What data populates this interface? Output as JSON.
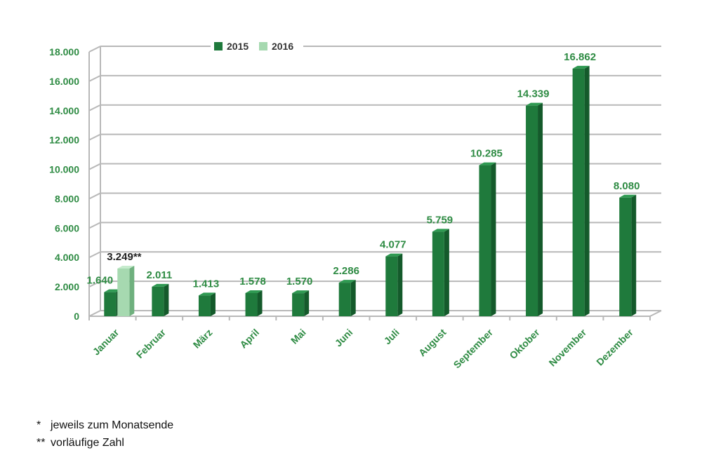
{
  "chart_data": {
    "type": "bar",
    "title": "",
    "xlabel": "",
    "ylabel": "",
    "ylim": [
      0,
      18000
    ],
    "yticks": [
      0,
      2000,
      4000,
      6000,
      8000,
      10000,
      12000,
      14000,
      16000,
      18000
    ],
    "ytick_labels": [
      "0",
      "2.000",
      "4.000",
      "6.000",
      "8.000",
      "10.000",
      "12.000",
      "14.000",
      "16.000",
      "18.000"
    ],
    "categories": [
      "Januar",
      "Februar",
      "März",
      "April",
      "Mai",
      "Juni",
      "Juli",
      "August",
      "September",
      "Oktober",
      "November",
      "Dezember"
    ],
    "series": [
      {
        "name": "2015",
        "values": [
          1640,
          2011,
          1413,
          1578,
          1570,
          2286,
          4077,
          5759,
          10285,
          14339,
          16862,
          8080
        ],
        "labels": [
          "1.640",
          "2.011",
          "1.413",
          "1.578",
          "1.570",
          "2.286",
          "4.077",
          "5.759",
          "10.285",
          "14.339",
          "16.862",
          "8.080"
        ]
      },
      {
        "name": "2016",
        "values": [
          3249,
          null,
          null,
          null,
          null,
          null,
          null,
          null,
          null,
          null,
          null,
          null
        ],
        "labels": [
          "3.249**",
          null,
          null,
          null,
          null,
          null,
          null,
          null,
          null,
          null,
          null,
          null
        ]
      }
    ],
    "legend": "top-center",
    "grid": true
  },
  "colors": {
    "series_2015": "#1f7a3c",
    "series_2015_side": "#145a2b",
    "series_2015_top": "#2f9a52",
    "series_2016": "#a6d9b0",
    "series_2016_side": "#6fb07e",
    "series_2016_top": "#c6ebcd",
    "axis_text": "#2e8b43",
    "grid": "#b8b8b8",
    "label_dark": "#222222"
  },
  "footnotes": [
    {
      "mark": "*",
      "text": "jeweils zum Monatsende"
    },
    {
      "mark": "**",
      "text": "vorläufige Zahl"
    }
  ]
}
